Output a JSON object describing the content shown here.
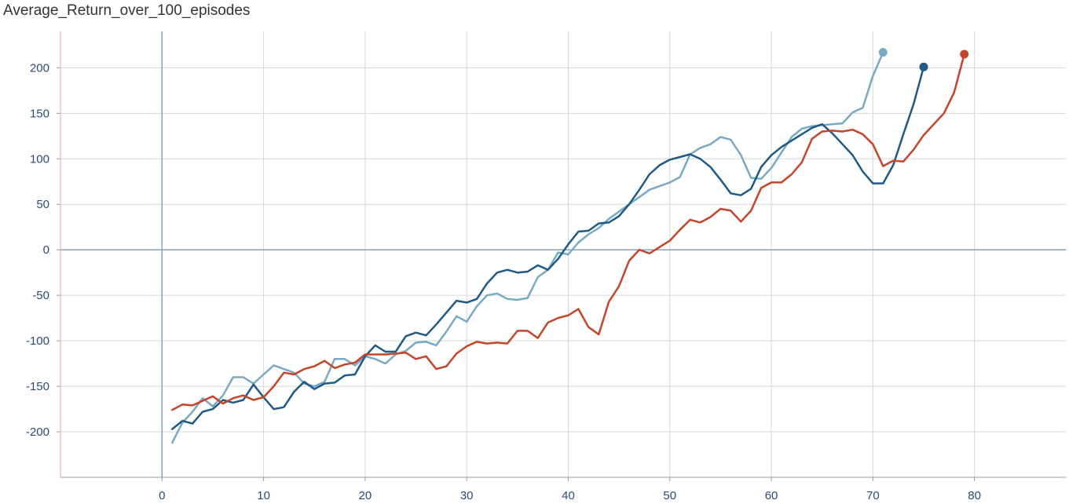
{
  "chart_data": {
    "type": "line",
    "title": "Average_Return_over_100_episodes",
    "xlabel": "",
    "ylabel": "",
    "xlim": [
      -10,
      89
    ],
    "ylim": [
      -250,
      240
    ],
    "x_ticks": [
      0,
      10,
      20,
      30,
      40,
      50,
      60,
      70,
      80
    ],
    "y_ticks": [
      -200,
      -150,
      -100,
      -50,
      0,
      50,
      100,
      150,
      200
    ],
    "grid": true,
    "colors": {
      "series_a": "#7aa9c4",
      "series_b": "#1f5a86",
      "series_c": "#c6452a",
      "axis": "#8aa2bb",
      "grid": "#d8d8d8",
      "tick_text": "#2b4a7a"
    },
    "series": [
      {
        "color": "#7aa9c4",
        "x": [
          1,
          2,
          3,
          4,
          5,
          6,
          7,
          8,
          9,
          10,
          11,
          12,
          13,
          14,
          15,
          16,
          17,
          18,
          19,
          20,
          21,
          22,
          23,
          24,
          25,
          26,
          27,
          28,
          29,
          30,
          31,
          32,
          33,
          34,
          35,
          36,
          37,
          38,
          39,
          40,
          41,
          42,
          43,
          44,
          45,
          46,
          47,
          48,
          49,
          50,
          51,
          52,
          53,
          54,
          55,
          56,
          57,
          58,
          59,
          60,
          61,
          62,
          63,
          64,
          65,
          66,
          67,
          68,
          69,
          70,
          71
        ],
        "y": [
          -212,
          -190,
          -178,
          -163,
          -172,
          -160,
          -140,
          -140,
          -147,
          -137,
          -127,
          -131,
          -135,
          -147,
          -150,
          -145,
          -120,
          -120,
          -127,
          -117,
          -120,
          -125,
          -115,
          -111,
          -102,
          -101,
          -105,
          -90,
          -73,
          -79,
          -62,
          -50,
          -48,
          -54,
          -55,
          -53,
          -30,
          -22,
          -3,
          -5,
          8,
          17,
          24,
          34,
          42,
          50,
          58,
          66,
          70,
          74,
          80,
          105,
          112,
          116,
          124,
          121,
          104,
          79,
          78,
          90,
          107,
          124,
          133,
          136,
          137,
          138,
          139,
          151,
          156,
          191,
          217
        ]
      },
      {
        "color": "#1f5a86",
        "x": [
          1,
          2,
          3,
          4,
          5,
          6,
          7,
          8,
          9,
          10,
          11,
          12,
          13,
          14,
          15,
          16,
          17,
          18,
          19,
          20,
          21,
          22,
          23,
          24,
          25,
          26,
          27,
          28,
          29,
          30,
          31,
          32,
          33,
          34,
          35,
          36,
          37,
          38,
          39,
          40,
          41,
          42,
          43,
          44,
          45,
          46,
          47,
          48,
          49,
          50,
          51,
          52,
          53,
          54,
          55,
          56,
          57,
          58,
          59,
          60,
          61,
          62,
          63,
          64,
          65,
          66,
          67,
          68,
          69,
          70,
          71,
          72,
          73,
          74,
          75
        ],
        "y": [
          -197,
          -188,
          -191,
          -178,
          -175,
          -165,
          -168,
          -165,
          -148,
          -162,
          -175,
          -173,
          -156,
          -145,
          -153,
          -147,
          -146,
          -138,
          -137,
          -117,
          -105,
          -112,
          -112,
          -95,
          -91,
          -94,
          -82,
          -69,
          -56,
          -58,
          -54,
          -37,
          -25,
          -22,
          -25,
          -24,
          -17,
          -22,
          -10,
          6,
          20,
          21,
          29,
          30,
          37,
          50,
          66,
          83,
          93,
          99,
          102,
          105,
          100,
          91,
          77,
          62,
          60,
          67,
          91,
          104,
          113,
          120,
          127,
          134,
          138,
          128,
          116,
          104,
          86,
          73,
          73,
          93,
          127,
          160,
          201
        ]
      },
      {
        "color": "#c6452a",
        "x": [
          1,
          2,
          3,
          4,
          5,
          6,
          7,
          8,
          9,
          10,
          11,
          12,
          13,
          14,
          15,
          16,
          17,
          18,
          19,
          20,
          21,
          22,
          23,
          24,
          25,
          26,
          27,
          28,
          29,
          30,
          31,
          32,
          33,
          34,
          35,
          36,
          37,
          38,
          39,
          40,
          41,
          42,
          43,
          44,
          45,
          46,
          47,
          48,
          49,
          50,
          51,
          52,
          53,
          54,
          55,
          56,
          57,
          58,
          59,
          60,
          61,
          62,
          63,
          64,
          65,
          66,
          67,
          68,
          69,
          70,
          71,
          72,
          73,
          74,
          75,
          76,
          77,
          78,
          79
        ],
        "y": [
          -176,
          -170,
          -171,
          -166,
          -161,
          -169,
          -163,
          -160,
          -165,
          -162,
          -150,
          -135,
          -137,
          -131,
          -128,
          -122,
          -130,
          -126,
          -124,
          -115,
          -115,
          -115,
          -114,
          -113,
          -120,
          -117,
          -131,
          -128,
          -114,
          -106,
          -101,
          -103,
          -102,
          -103,
          -89,
          -89,
          -97,
          -80,
          -75,
          -72,
          -65,
          -85,
          -93,
          -57,
          -40,
          -12,
          0,
          -4,
          3,
          10,
          22,
          33,
          30,
          36,
          45,
          43,
          31,
          43,
          68,
          74,
          74,
          83,
          96,
          122,
          130,
          131,
          130,
          132,
          127,
          116,
          92,
          98,
          97,
          110,
          126,
          138,
          150,
          173,
          215
        ]
      }
    ]
  }
}
